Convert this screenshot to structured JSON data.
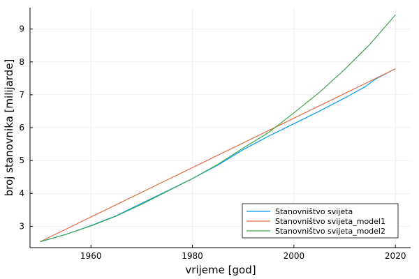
{
  "chart_data": {
    "type": "line",
    "xlabel": "vrijeme [god]",
    "ylabel": "broj stanovnika [milijarde]",
    "xlim": [
      1948,
      2023
    ],
    "ylim": [
      2.35,
      9.65
    ],
    "xticks": [
      1960,
      1980,
      2000,
      2020
    ],
    "yticks": [
      3,
      4,
      5,
      6,
      7,
      8,
      9
    ],
    "grid": true,
    "legend_position": "bottom-right",
    "series": [
      {
        "name": "Stanovništvo svijeta",
        "color": "#009AFA",
        "x": [
          1950,
          1955,
          1960,
          1965,
          1970,
          1975,
          1980,
          1985,
          1990,
          1995,
          2000,
          2005,
          2010,
          2014,
          2016,
          2020
        ],
        "y": [
          2.53,
          2.75,
          3.02,
          3.32,
          3.7,
          4.07,
          4.45,
          4.86,
          5.33,
          5.74,
          6.12,
          6.5,
          6.9,
          7.24,
          7.47,
          7.79
        ]
      },
      {
        "name": "Stanovništvo svijeta_model1",
        "color": "#E26F46",
        "x": [
          1950,
          2020
        ],
        "y": [
          2.53,
          7.79
        ]
      },
      {
        "name": "Stanovništvo svijeta_model2",
        "color": "#3DA44D",
        "x": [
          1950,
          1955,
          1960,
          1965,
          1970,
          1975,
          1980,
          1985,
          1990,
          1995,
          2000,
          2005,
          2010,
          2015,
          2020
        ],
        "y": [
          2.53,
          2.75,
          3.01,
          3.31,
          3.67,
          4.06,
          4.45,
          4.88,
          5.38,
          5.85,
          6.45,
          7.07,
          7.77,
          8.54,
          9.43
        ]
      }
    ]
  }
}
